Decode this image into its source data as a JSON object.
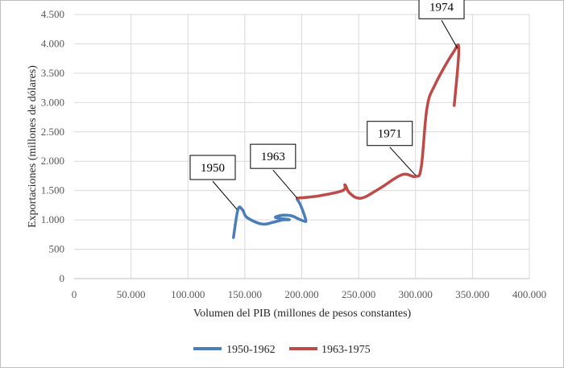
{
  "chart_data": {
    "type": "line",
    "xlabel": "Volumen del PIB (millones de pesos constantes)",
    "ylabel": "Exportaciones (millones de dólares)",
    "xlim": [
      0,
      400000
    ],
    "ylim": [
      0,
      4500
    ],
    "x_ticks": [
      0,
      50000,
      100000,
      150000,
      200000,
      250000,
      300000,
      350000,
      400000
    ],
    "x_tick_labels": [
      "0",
      "50.000",
      "100.000",
      "150.000",
      "200.000",
      "250.000",
      "300.000",
      "350.000",
      "400.000"
    ],
    "y_ticks": [
      0,
      500,
      1000,
      1500,
      2000,
      2500,
      3000,
      3500,
      4000,
      4500
    ],
    "y_tick_labels": [
      "0",
      "500",
      "1.000",
      "1.500",
      "2.000",
      "2.500",
      "3.000",
      "3.500",
      "4.000",
      "4.500"
    ],
    "grid": true,
    "legend_position": "bottom",
    "series": [
      {
        "name": "1950-1962",
        "color": "#4a7ebb",
        "x": [
          140000,
          144000,
          148000,
          152000,
          165000,
          175000,
          183000,
          189000,
          177000,
          183000,
          191000,
          198000,
          202000,
          203500,
          199000,
          196000
        ],
        "y": [
          700,
          1180,
          1170,
          1040,
          930,
          960,
          1000,
          1005,
          1040,
          1080,
          1070,
          1010,
          980,
          1000,
          1250,
          1350
        ]
      },
      {
        "name": "1963-1975",
        "color": "#be4b48",
        "x": [
          196000,
          215000,
          236000,
          238000,
          242000,
          252000,
          268000,
          288000,
          300000,
          305000,
          310000,
          317000,
          333000,
          338000,
          334000
        ],
        "y": [
          1370,
          1410,
          1500,
          1600,
          1460,
          1370,
          1530,
          1770,
          1740,
          1900,
          2900,
          3300,
          3850,
          3900,
          2950
        ]
      }
    ],
    "annotations": [
      {
        "text": "1950",
        "x": 143000,
        "y": 1180
      },
      {
        "text": "1963",
        "x": 196000,
        "y": 1370
      },
      {
        "text": "1971",
        "x": 300000,
        "y": 1760
      },
      {
        "text": "1974",
        "x": 337000,
        "y": 3920
      }
    ]
  }
}
